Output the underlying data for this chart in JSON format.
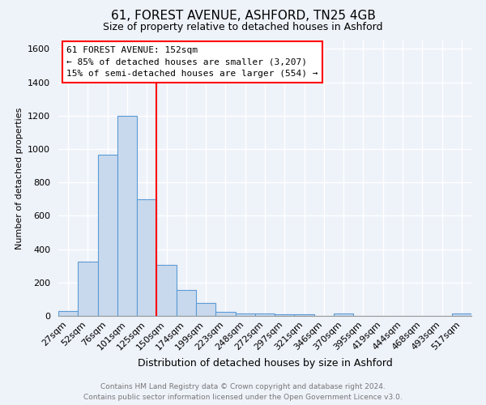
{
  "title": "61, FOREST AVENUE, ASHFORD, TN25 4GB",
  "subtitle": "Size of property relative to detached houses in Ashford",
  "xlabel": "Distribution of detached houses by size in Ashford",
  "ylabel": "Number of detached properties",
  "categories": [
    "27sqm",
    "52sqm",
    "76sqm",
    "101sqm",
    "125sqm",
    "150sqm",
    "174sqm",
    "199sqm",
    "223sqm",
    "248sqm",
    "272sqm",
    "297sqm",
    "321sqm",
    "346sqm",
    "370sqm",
    "395sqm",
    "419sqm",
    "444sqm",
    "468sqm",
    "493sqm",
    "517sqm"
  ],
  "values": [
    30,
    325,
    965,
    1200,
    700,
    305,
    155,
    80,
    25,
    15,
    15,
    10,
    10,
    0,
    15,
    0,
    0,
    0,
    0,
    0,
    15
  ],
  "bar_color": "#c9d9ed",
  "bar_edge_color": "#5b9bd5",
  "red_line_x": 4.5,
  "annotation_text": "61 FOREST AVENUE: 152sqm\n← 85% of detached houses are smaller (3,207)\n15% of semi-detached houses are larger (554) →",
  "annotation_box_color": "white",
  "annotation_box_edge": "red",
  "ylim": [
    0,
    1650
  ],
  "yticks": [
    0,
    200,
    400,
    600,
    800,
    1000,
    1200,
    1400,
    1600
  ],
  "footer_line1": "Contains HM Land Registry data © Crown copyright and database right 2024.",
  "footer_line2": "Contains public sector information licensed under the Open Government Licence v3.0.",
  "background_color": "#eef2f9",
  "grid_color": "white",
  "title_fontsize": 11,
  "subtitle_fontsize": 9,
  "ylabel_fontsize": 8,
  "xlabel_fontsize": 9,
  "tick_fontsize": 8,
  "annotation_fontsize": 8,
  "footer_fontsize": 6.5
}
